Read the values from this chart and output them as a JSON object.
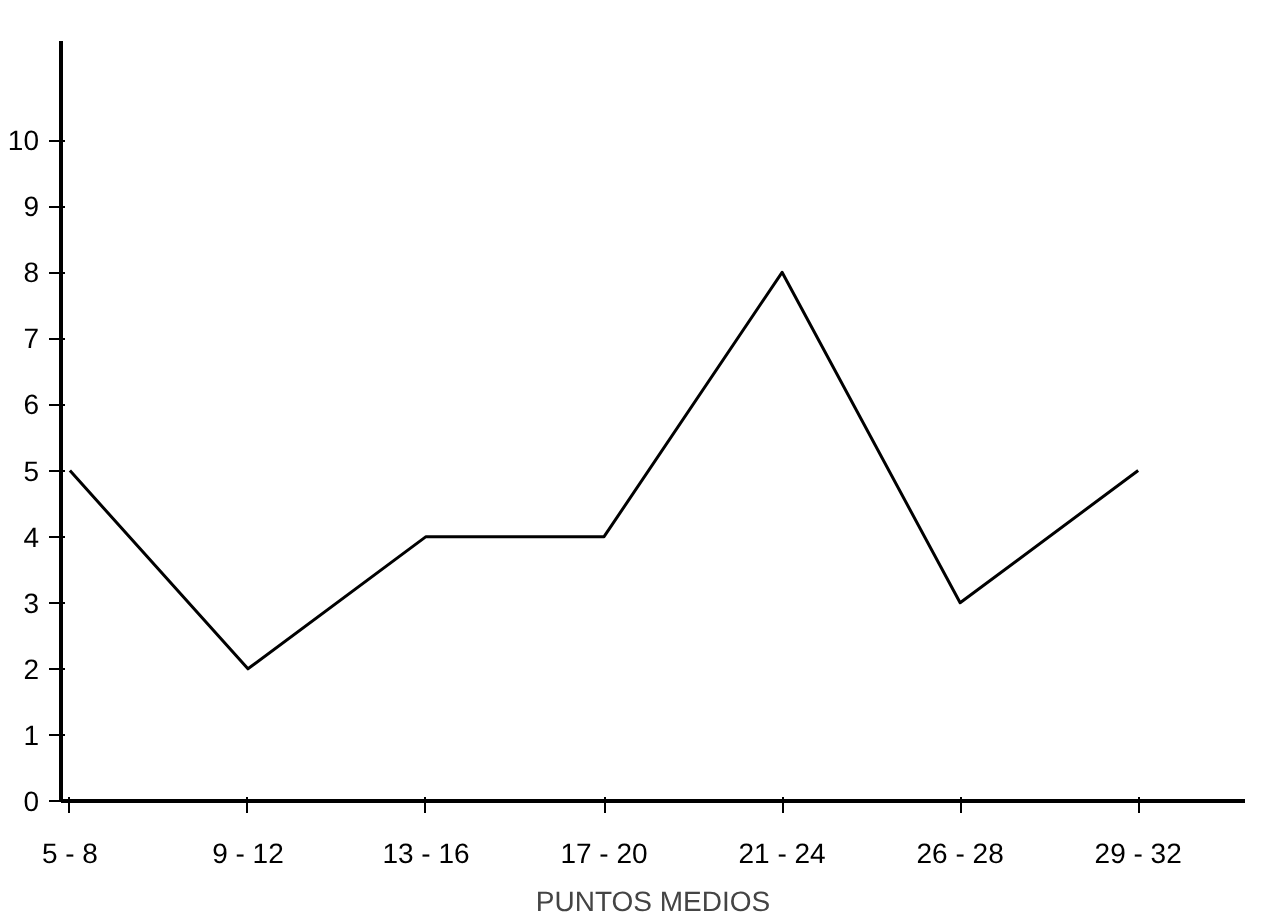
{
  "chart_data": {
    "type": "line",
    "xlabel": "PUNTOS MEDIOS",
    "categories": [
      "5 - 8",
      "9 - 12",
      "13 - 16",
      "17 - 20",
      "21 - 24",
      "26 - 28",
      "29 - 32"
    ],
    "values": [
      5,
      2,
      4,
      4,
      8,
      3,
      5
    ],
    "color": "#000000",
    "ylim": [
      0,
      11.5
    ],
    "yticks": [
      0,
      1,
      2,
      3,
      4,
      5,
      6,
      7,
      8,
      9,
      10
    ]
  }
}
